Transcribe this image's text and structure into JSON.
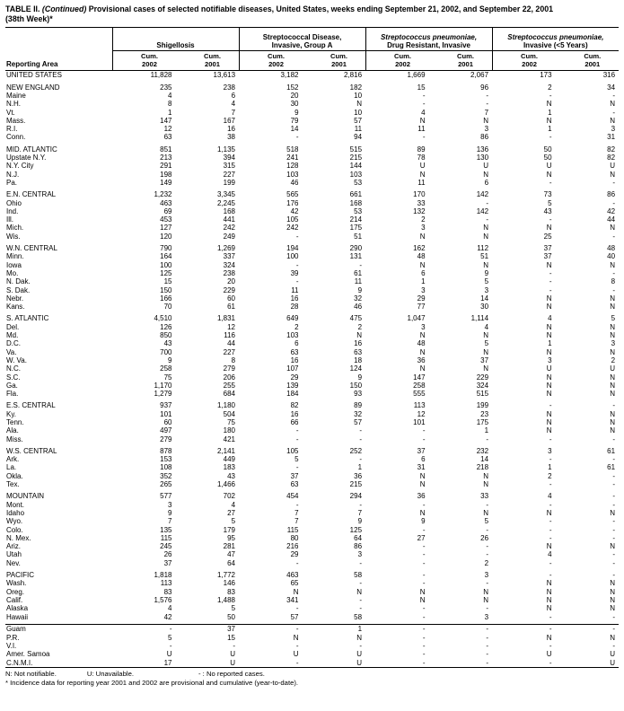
{
  "title": {
    "prefix": "TABLE II.",
    "continued": "(Continued)",
    "rest": "Provisional cases of selected notifiable diseases, United States, weeks ending September 21, 2002, and September 22, 2001",
    "week": "(38th Week)*"
  },
  "table": {
    "reporting_area_label": "Reporting Area",
    "cum_label": "Cum.",
    "years": [
      "2002",
      "2001"
    ],
    "col_groups": [
      {
        "lines": [
          {
            "text": "Shigellosis",
            "italic": false
          }
        ]
      },
      {
        "lines": [
          {
            "text": "Streptococcal Disease,",
            "italic": false
          },
          {
            "text": "Invasive, Group A",
            "italic": false
          }
        ]
      },
      {
        "lines": [
          {
            "text": "Streptococcus pneumoniae,",
            "italic": true
          },
          {
            "text": "Drug Resistant, Invasive",
            "italic": false
          }
        ]
      },
      {
        "lines": [
          {
            "text": "Streptococcus pneumoniae,",
            "italic": true
          },
          {
            "text": "Invasive (<5 Years)",
            "italic": false
          }
        ]
      }
    ],
    "rows": [
      {
        "area": "UNITED STATES",
        "values": [
          "11,828",
          "13,613",
          "3,182",
          "2,816",
          "1,669",
          "2,067",
          "173",
          "316"
        ]
      },
      {
        "spacer": true
      },
      {
        "area": "NEW ENGLAND",
        "values": [
          "235",
          "238",
          "152",
          "182",
          "15",
          "96",
          "2",
          "34"
        ]
      },
      {
        "area": "Maine",
        "values": [
          "4",
          "6",
          "20",
          "10",
          "-",
          "-",
          "-",
          "-"
        ]
      },
      {
        "area": "N.H.",
        "values": [
          "8",
          "4",
          "30",
          "N",
          "-",
          "-",
          "N",
          "N"
        ]
      },
      {
        "area": "Vt.",
        "values": [
          "1",
          "7",
          "9",
          "10",
          "4",
          "7",
          "1",
          "-"
        ]
      },
      {
        "area": "Mass.",
        "values": [
          "147",
          "167",
          "79",
          "57",
          "N",
          "N",
          "N",
          "N"
        ]
      },
      {
        "area": "R.I.",
        "values": [
          "12",
          "16",
          "14",
          "11",
          "11",
          "3",
          "1",
          "3"
        ]
      },
      {
        "area": "Conn.",
        "values": [
          "63",
          "38",
          "-",
          "94",
          "-",
          "86",
          "-",
          "31"
        ]
      },
      {
        "spacer": true
      },
      {
        "area": "MID. ATLANTIC",
        "values": [
          "851",
          "1,135",
          "518",
          "515",
          "89",
          "136",
          "50",
          "82"
        ]
      },
      {
        "area": "Upstate N.Y.",
        "values": [
          "213",
          "394",
          "241",
          "215",
          "78",
          "130",
          "50",
          "82"
        ]
      },
      {
        "area": "N.Y. City",
        "values": [
          "291",
          "315",
          "128",
          "144",
          "U",
          "U",
          "U",
          "U"
        ]
      },
      {
        "area": "N.J.",
        "values": [
          "198",
          "227",
          "103",
          "103",
          "N",
          "N",
          "N",
          "N"
        ]
      },
      {
        "area": "Pa.",
        "values": [
          "149",
          "199",
          "46",
          "53",
          "11",
          "6",
          "-",
          "-"
        ]
      },
      {
        "spacer": true
      },
      {
        "area": "E.N. CENTRAL",
        "values": [
          "1,232",
          "3,345",
          "565",
          "661",
          "170",
          "142",
          "73",
          "86"
        ]
      },
      {
        "area": "Ohio",
        "values": [
          "463",
          "2,245",
          "176",
          "168",
          "33",
          "-",
          "5",
          "-"
        ]
      },
      {
        "area": "Ind.",
        "values": [
          "69",
          "168",
          "42",
          "53",
          "132",
          "142",
          "43",
          "42"
        ]
      },
      {
        "area": "Ill.",
        "values": [
          "453",
          "441",
          "105",
          "214",
          "2",
          "-",
          "-",
          "44"
        ]
      },
      {
        "area": "Mich.",
        "values": [
          "127",
          "242",
          "242",
          "175",
          "3",
          "N",
          "N",
          "N"
        ]
      },
      {
        "area": "Wis.",
        "values": [
          "120",
          "249",
          "-",
          "51",
          "N",
          "N",
          "25",
          "-"
        ]
      },
      {
        "spacer": true
      },
      {
        "area": "W.N. CENTRAL",
        "values": [
          "790",
          "1,269",
          "194",
          "290",
          "162",
          "112",
          "37",
          "48"
        ]
      },
      {
        "area": "Minn.",
        "values": [
          "164",
          "337",
          "100",
          "131",
          "48",
          "51",
          "37",
          "40"
        ]
      },
      {
        "area": "Iowa",
        "values": [
          "100",
          "324",
          "-",
          "-",
          "N",
          "N",
          "N",
          "N"
        ]
      },
      {
        "area": "Mo.",
        "values": [
          "125",
          "238",
          "39",
          "61",
          "6",
          "9",
          "-",
          "-"
        ]
      },
      {
        "area": "N. Dak.",
        "values": [
          "15",
          "20",
          "-",
          "11",
          "1",
          "5",
          "-",
          "8"
        ]
      },
      {
        "area": "S. Dak.",
        "values": [
          "150",
          "229",
          "11",
          "9",
          "3",
          "3",
          "-",
          "-"
        ]
      },
      {
        "area": "Nebr.",
        "values": [
          "166",
          "60",
          "16",
          "32",
          "29",
          "14",
          "N",
          "N"
        ]
      },
      {
        "area": "Kans.",
        "values": [
          "70",
          "61",
          "28",
          "46",
          "77",
          "30",
          "N",
          "N"
        ]
      },
      {
        "spacer": true
      },
      {
        "area": "S. ATLANTIC",
        "values": [
          "4,510",
          "1,831",
          "649",
          "475",
          "1,047",
          "1,114",
          "4",
          "5"
        ]
      },
      {
        "area": "Del.",
        "values": [
          "126",
          "12",
          "2",
          "2",
          "3",
          "4",
          "N",
          "N"
        ]
      },
      {
        "area": "Md.",
        "values": [
          "850",
          "116",
          "103",
          "N",
          "N",
          "N",
          "N",
          "N"
        ]
      },
      {
        "area": "D.C.",
        "values": [
          "43",
          "44",
          "6",
          "16",
          "48",
          "5",
          "1",
          "3"
        ]
      },
      {
        "area": "Va.",
        "values": [
          "700",
          "227",
          "63",
          "63",
          "N",
          "N",
          "N",
          "N"
        ]
      },
      {
        "area": "W. Va.",
        "values": [
          "9",
          "8",
          "16",
          "18",
          "36",
          "37",
          "3",
          "2"
        ]
      },
      {
        "area": "N.C.",
        "values": [
          "258",
          "279",
          "107",
          "124",
          "N",
          "N",
          "U",
          "U"
        ]
      },
      {
        "area": "S.C.",
        "values": [
          "75",
          "206",
          "29",
          "9",
          "147",
          "229",
          "N",
          "N"
        ]
      },
      {
        "area": "Ga.",
        "values": [
          "1,170",
          "255",
          "139",
          "150",
          "258",
          "324",
          "N",
          "N"
        ]
      },
      {
        "area": "Fla.",
        "values": [
          "1,279",
          "684",
          "184",
          "93",
          "555",
          "515",
          "N",
          "N"
        ]
      },
      {
        "spacer": true
      },
      {
        "area": "E.S. CENTRAL",
        "values": [
          "937",
          "1,180",
          "82",
          "89",
          "113",
          "199",
          "-",
          "-"
        ]
      },
      {
        "area": "Ky.",
        "values": [
          "101",
          "504",
          "16",
          "32",
          "12",
          "23",
          "N",
          "N"
        ]
      },
      {
        "area": "Tenn.",
        "values": [
          "60",
          "75",
          "66",
          "57",
          "101",
          "175",
          "N",
          "N"
        ]
      },
      {
        "area": "Ala.",
        "values": [
          "497",
          "180",
          "-",
          "-",
          "-",
          "1",
          "N",
          "N"
        ]
      },
      {
        "area": "Miss.",
        "values": [
          "279",
          "421",
          "-",
          "-",
          "-",
          "-",
          "-",
          "-"
        ]
      },
      {
        "spacer": true
      },
      {
        "area": "W.S. CENTRAL",
        "values": [
          "878",
          "2,141",
          "105",
          "252",
          "37",
          "232",
          "3",
          "61"
        ]
      },
      {
        "area": "Ark.",
        "values": [
          "153",
          "449",
          "5",
          "-",
          "6",
          "14",
          "-",
          "-"
        ]
      },
      {
        "area": "La.",
        "values": [
          "108",
          "183",
          "-",
          "1",
          "31",
          "218",
          "1",
          "61"
        ]
      },
      {
        "area": "Okla.",
        "values": [
          "352",
          "43",
          "37",
          "36",
          "N",
          "N",
          "2",
          "-"
        ]
      },
      {
        "area": "Tex.",
        "values": [
          "265",
          "1,466",
          "63",
          "215",
          "N",
          "N",
          "-",
          "-"
        ]
      },
      {
        "spacer": true
      },
      {
        "area": "MOUNTAIN",
        "values": [
          "577",
          "702",
          "454",
          "294",
          "36",
          "33",
          "4",
          "-"
        ]
      },
      {
        "area": "Mont.",
        "values": [
          "3",
          "4",
          "-",
          "-",
          "-",
          "-",
          "-",
          "-"
        ]
      },
      {
        "area": "Idaho",
        "values": [
          "9",
          "27",
          "7",
          "7",
          "N",
          "N",
          "N",
          "N"
        ]
      },
      {
        "area": "Wyo.",
        "values": [
          "7",
          "5",
          "7",
          "9",
          "9",
          "5",
          "-",
          "-"
        ]
      },
      {
        "area": "Colo.",
        "values": [
          "135",
          "179",
          "115",
          "125",
          "-",
          "-",
          "-",
          "-"
        ]
      },
      {
        "area": "N. Mex.",
        "values": [
          "115",
          "95",
          "80",
          "64",
          "27",
          "26",
          "-",
          "-"
        ]
      },
      {
        "area": "Ariz.",
        "values": [
          "245",
          "281",
          "216",
          "86",
          "-",
          "-",
          "N",
          "N"
        ]
      },
      {
        "area": "Utah",
        "values": [
          "26",
          "47",
          "29",
          "3",
          "-",
          "-",
          "4",
          "-"
        ]
      },
      {
        "area": "Nev.",
        "values": [
          "37",
          "64",
          "-",
          "-",
          "-",
          "2",
          "-",
          "-"
        ]
      },
      {
        "spacer": true
      },
      {
        "area": "PACIFIC",
        "values": [
          "1,818",
          "1,772",
          "463",
          "58",
          "-",
          "3",
          "-",
          "-"
        ]
      },
      {
        "area": "Wash.",
        "values": [
          "113",
          "146",
          "65",
          "-",
          "-",
          "-",
          "N",
          "N"
        ]
      },
      {
        "area": "Oreg.",
        "values": [
          "83",
          "83",
          "N",
          "N",
          "N",
          "N",
          "N",
          "N"
        ]
      },
      {
        "area": "Calif.",
        "values": [
          "1,576",
          "1,488",
          "341",
          "-",
          "N",
          "N",
          "N",
          "N"
        ]
      },
      {
        "area": "Alaska",
        "values": [
          "4",
          "5",
          "-",
          "-",
          "-",
          "-",
          "N",
          "N"
        ]
      },
      {
        "area": "Hawaii",
        "values": [
          "42",
          "50",
          "57",
          "58",
          "-",
          "3",
          "-",
          "-"
        ]
      },
      {
        "spacer": true,
        "rule": true
      },
      {
        "area": "Guam",
        "values": [
          "-",
          "37",
          "-",
          "1",
          "-",
          "-",
          "-",
          "-"
        ]
      },
      {
        "area": "P.R.",
        "values": [
          "5",
          "15",
          "N",
          "N",
          "-",
          "-",
          "N",
          "N"
        ]
      },
      {
        "area": "V.I.",
        "values": [
          "-",
          "-",
          "-",
          "-",
          "-",
          "-",
          "-",
          "-"
        ]
      },
      {
        "area": "Amer. Samoa",
        "values": [
          "U",
          "U",
          "U",
          "U",
          "-",
          "-",
          "U",
          "U"
        ]
      },
      {
        "area": "C.N.M.I.",
        "values": [
          "17",
          "U",
          "-",
          "U",
          "-",
          "-",
          "-",
          "U"
        ]
      }
    ]
  },
  "footnotes": {
    "n": "N: Not notifiable.",
    "u": "U: Unavailable.",
    "dash": "- : No reported cases.",
    "incidence": "* Incidence data for reporting year 2001 and 2002 are provisional and cumulative (year-to-date)."
  }
}
